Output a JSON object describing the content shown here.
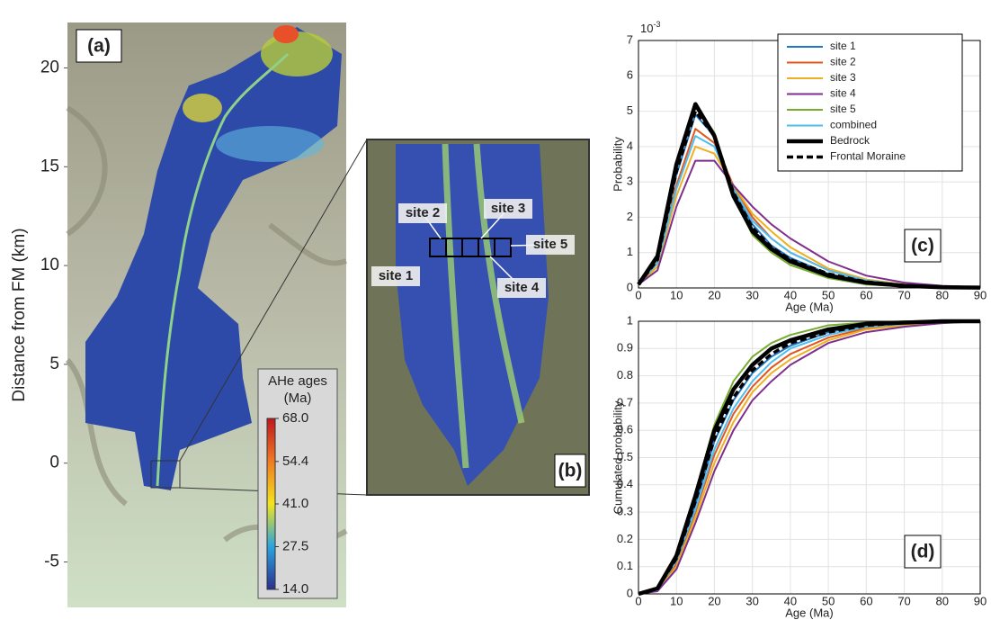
{
  "chart_data": [
    {
      "type": "map",
      "label": "(a)",
      "ylabel": "Distance from FM (km)",
      "ylim": [
        -7.3,
        22.3
      ],
      "yticks": [
        -5,
        0,
        5,
        10,
        15,
        20
      ],
      "colorbar_title": [
        "AHe ages",
        "(Ma)"
      ],
      "colormap": [
        "#2b2f8f",
        "#2aa4e0",
        "#f2e41c",
        "#f07a22",
        "#c0161e"
      ],
      "colorbar_lim": [
        14.0,
        68.0
      ],
      "colorbar_ticks": [
        {
          "value": 68.0,
          "label": "68.0"
        },
        {
          "value": 54.4,
          "label": "54.4"
        },
        {
          "value": 41.0,
          "label": "41.0"
        },
        {
          "value": 27.5,
          "label": "27.5"
        },
        {
          "value": 14.0,
          "label": "14.0"
        }
      ]
    },
    {
      "type": "inset",
      "label": "(b)",
      "sites": [
        "site 1",
        "site 2",
        "site 3",
        "site 4",
        "site 5"
      ]
    },
    {
      "type": "line",
      "label": "(c)",
      "xlabel": "Age (Ma)",
      "ylabel": "Probability",
      "y_scale": {
        "base": "10",
        "exponent": "-3"
      },
      "xlim": [
        0,
        90
      ],
      "ylim": [
        0,
        7
      ],
      "xticks": [
        0,
        10,
        20,
        30,
        40,
        50,
        60,
        70,
        80,
        90
      ],
      "yticks": [
        0,
        1,
        2,
        3,
        4,
        5,
        6,
        7
      ],
      "grid": true,
      "legend": "upper right",
      "x": [
        0,
        5,
        10,
        15,
        20,
        25,
        30,
        35,
        40,
        50,
        60,
        70,
        80,
        90
      ],
      "series": [
        {
          "name": "site 1",
          "color": "#1f77c4",
          "values": [
            0.1,
            0.8,
            3.2,
            4.9,
            4.3,
            2.7,
            1.8,
            1.2,
            0.85,
            0.4,
            0.17,
            0.07,
            0.03,
            0.01
          ]
        },
        {
          "name": "site 2",
          "color": "#e2561e",
          "values": [
            0.1,
            0.7,
            2.9,
            4.5,
            4.1,
            2.9,
            2.0,
            1.4,
            1.0,
            0.5,
            0.2,
            0.08,
            0.03,
            0.01
          ]
        },
        {
          "name": "site 3",
          "color": "#eeb020",
          "values": [
            0.1,
            0.6,
            2.6,
            4.0,
            3.8,
            2.9,
            2.1,
            1.6,
            1.15,
            0.55,
            0.24,
            0.1,
            0.04,
            0.01
          ]
        },
        {
          "name": "site 4",
          "color": "#7e2f8e",
          "values": [
            0.1,
            0.5,
            2.3,
            3.6,
            3.6,
            2.9,
            2.3,
            1.8,
            1.4,
            0.75,
            0.35,
            0.15,
            0.06,
            0.02
          ]
        },
        {
          "name": "site 5",
          "color": "#77ac30",
          "values": [
            0.1,
            0.8,
            3.4,
            5.1,
            4.4,
            2.6,
            1.5,
            1.0,
            0.65,
            0.28,
            0.1,
            0.04,
            0.02,
            0.01
          ]
        },
        {
          "name": "combined",
          "color": "#4dbeee",
          "values": [
            0.1,
            0.7,
            2.8,
            4.3,
            4.0,
            2.8,
            1.9,
            1.4,
            1.0,
            0.5,
            0.21,
            0.09,
            0.03,
            0.01
          ]
        },
        {
          "name": "Bedrock",
          "color": "#000000",
          "width": 4.5,
          "values": [
            0.1,
            0.9,
            3.5,
            5.2,
            4.3,
            2.6,
            1.6,
            1.1,
            0.75,
            0.35,
            0.15,
            0.06,
            0.02,
            0.01
          ]
        },
        {
          "name": "Frontal Moraine",
          "color": "#000000",
          "width": 3.5,
          "dashed": true,
          "values": [
            0.1,
            0.8,
            3.3,
            5.0,
            4.3,
            2.7,
            1.7,
            1.15,
            0.8,
            0.4,
            0.17,
            0.07,
            0.03,
            0.01
          ]
        }
      ]
    },
    {
      "type": "line",
      "label": "(d)",
      "xlabel": "Age (Ma)",
      "ylabel": "Cumulated probability",
      "xlim": [
        0,
        90
      ],
      "ylim": [
        0,
        1
      ],
      "xticks": [
        0,
        10,
        20,
        30,
        40,
        50,
        60,
        70,
        80,
        90
      ],
      "yticks": [
        0,
        0.1,
        0.2,
        0.3,
        0.4,
        0.5,
        0.6,
        0.7,
        0.8,
        0.9,
        1
      ],
      "grid": true,
      "x": [
        0,
        5,
        10,
        15,
        20,
        25,
        30,
        35,
        40,
        50,
        60,
        70,
        80,
        90
      ],
      "series": [
        {
          "color": "#1f77c4",
          "values": [
            0,
            0.02,
            0.13,
            0.33,
            0.56,
            0.71,
            0.81,
            0.87,
            0.91,
            0.96,
            0.985,
            0.995,
            1,
            1
          ]
        },
        {
          "color": "#e2561e",
          "values": [
            0,
            0.015,
            0.11,
            0.3,
            0.51,
            0.66,
            0.76,
            0.83,
            0.88,
            0.94,
            0.975,
            0.99,
            0.997,
            1
          ]
        },
        {
          "color": "#eeb020",
          "values": [
            0,
            0.01,
            0.1,
            0.28,
            0.48,
            0.63,
            0.74,
            0.81,
            0.86,
            0.93,
            0.97,
            0.985,
            0.995,
            1
          ]
        },
        {
          "color": "#7e2f8e",
          "values": [
            0,
            0.01,
            0.09,
            0.26,
            0.45,
            0.6,
            0.71,
            0.78,
            0.84,
            0.92,
            0.96,
            0.98,
            0.993,
            1
          ]
        },
        {
          "color": "#77ac30",
          "values": [
            0,
            0.02,
            0.14,
            0.37,
            0.62,
            0.78,
            0.87,
            0.92,
            0.95,
            0.985,
            0.995,
            1,
            1,
            1
          ]
        },
        {
          "color": "#4dbeee",
          "values": [
            0,
            0.015,
            0.12,
            0.31,
            0.53,
            0.68,
            0.78,
            0.85,
            0.9,
            0.95,
            0.98,
            0.99,
            1,
            1
          ]
        },
        {
          "color": "#000000",
          "width": 4.5,
          "values": [
            0,
            0.02,
            0.14,
            0.36,
            0.6,
            0.75,
            0.84,
            0.9,
            0.93,
            0.97,
            0.99,
            0.995,
            1,
            1
          ]
        },
        {
          "color": "#000000",
          "width": 3.5,
          "dashed": true,
          "values": [
            0,
            0.02,
            0.13,
            0.34,
            0.57,
            0.72,
            0.82,
            0.88,
            0.92,
            0.96,
            0.985,
            0.995,
            1,
            1
          ]
        }
      ]
    }
  ]
}
